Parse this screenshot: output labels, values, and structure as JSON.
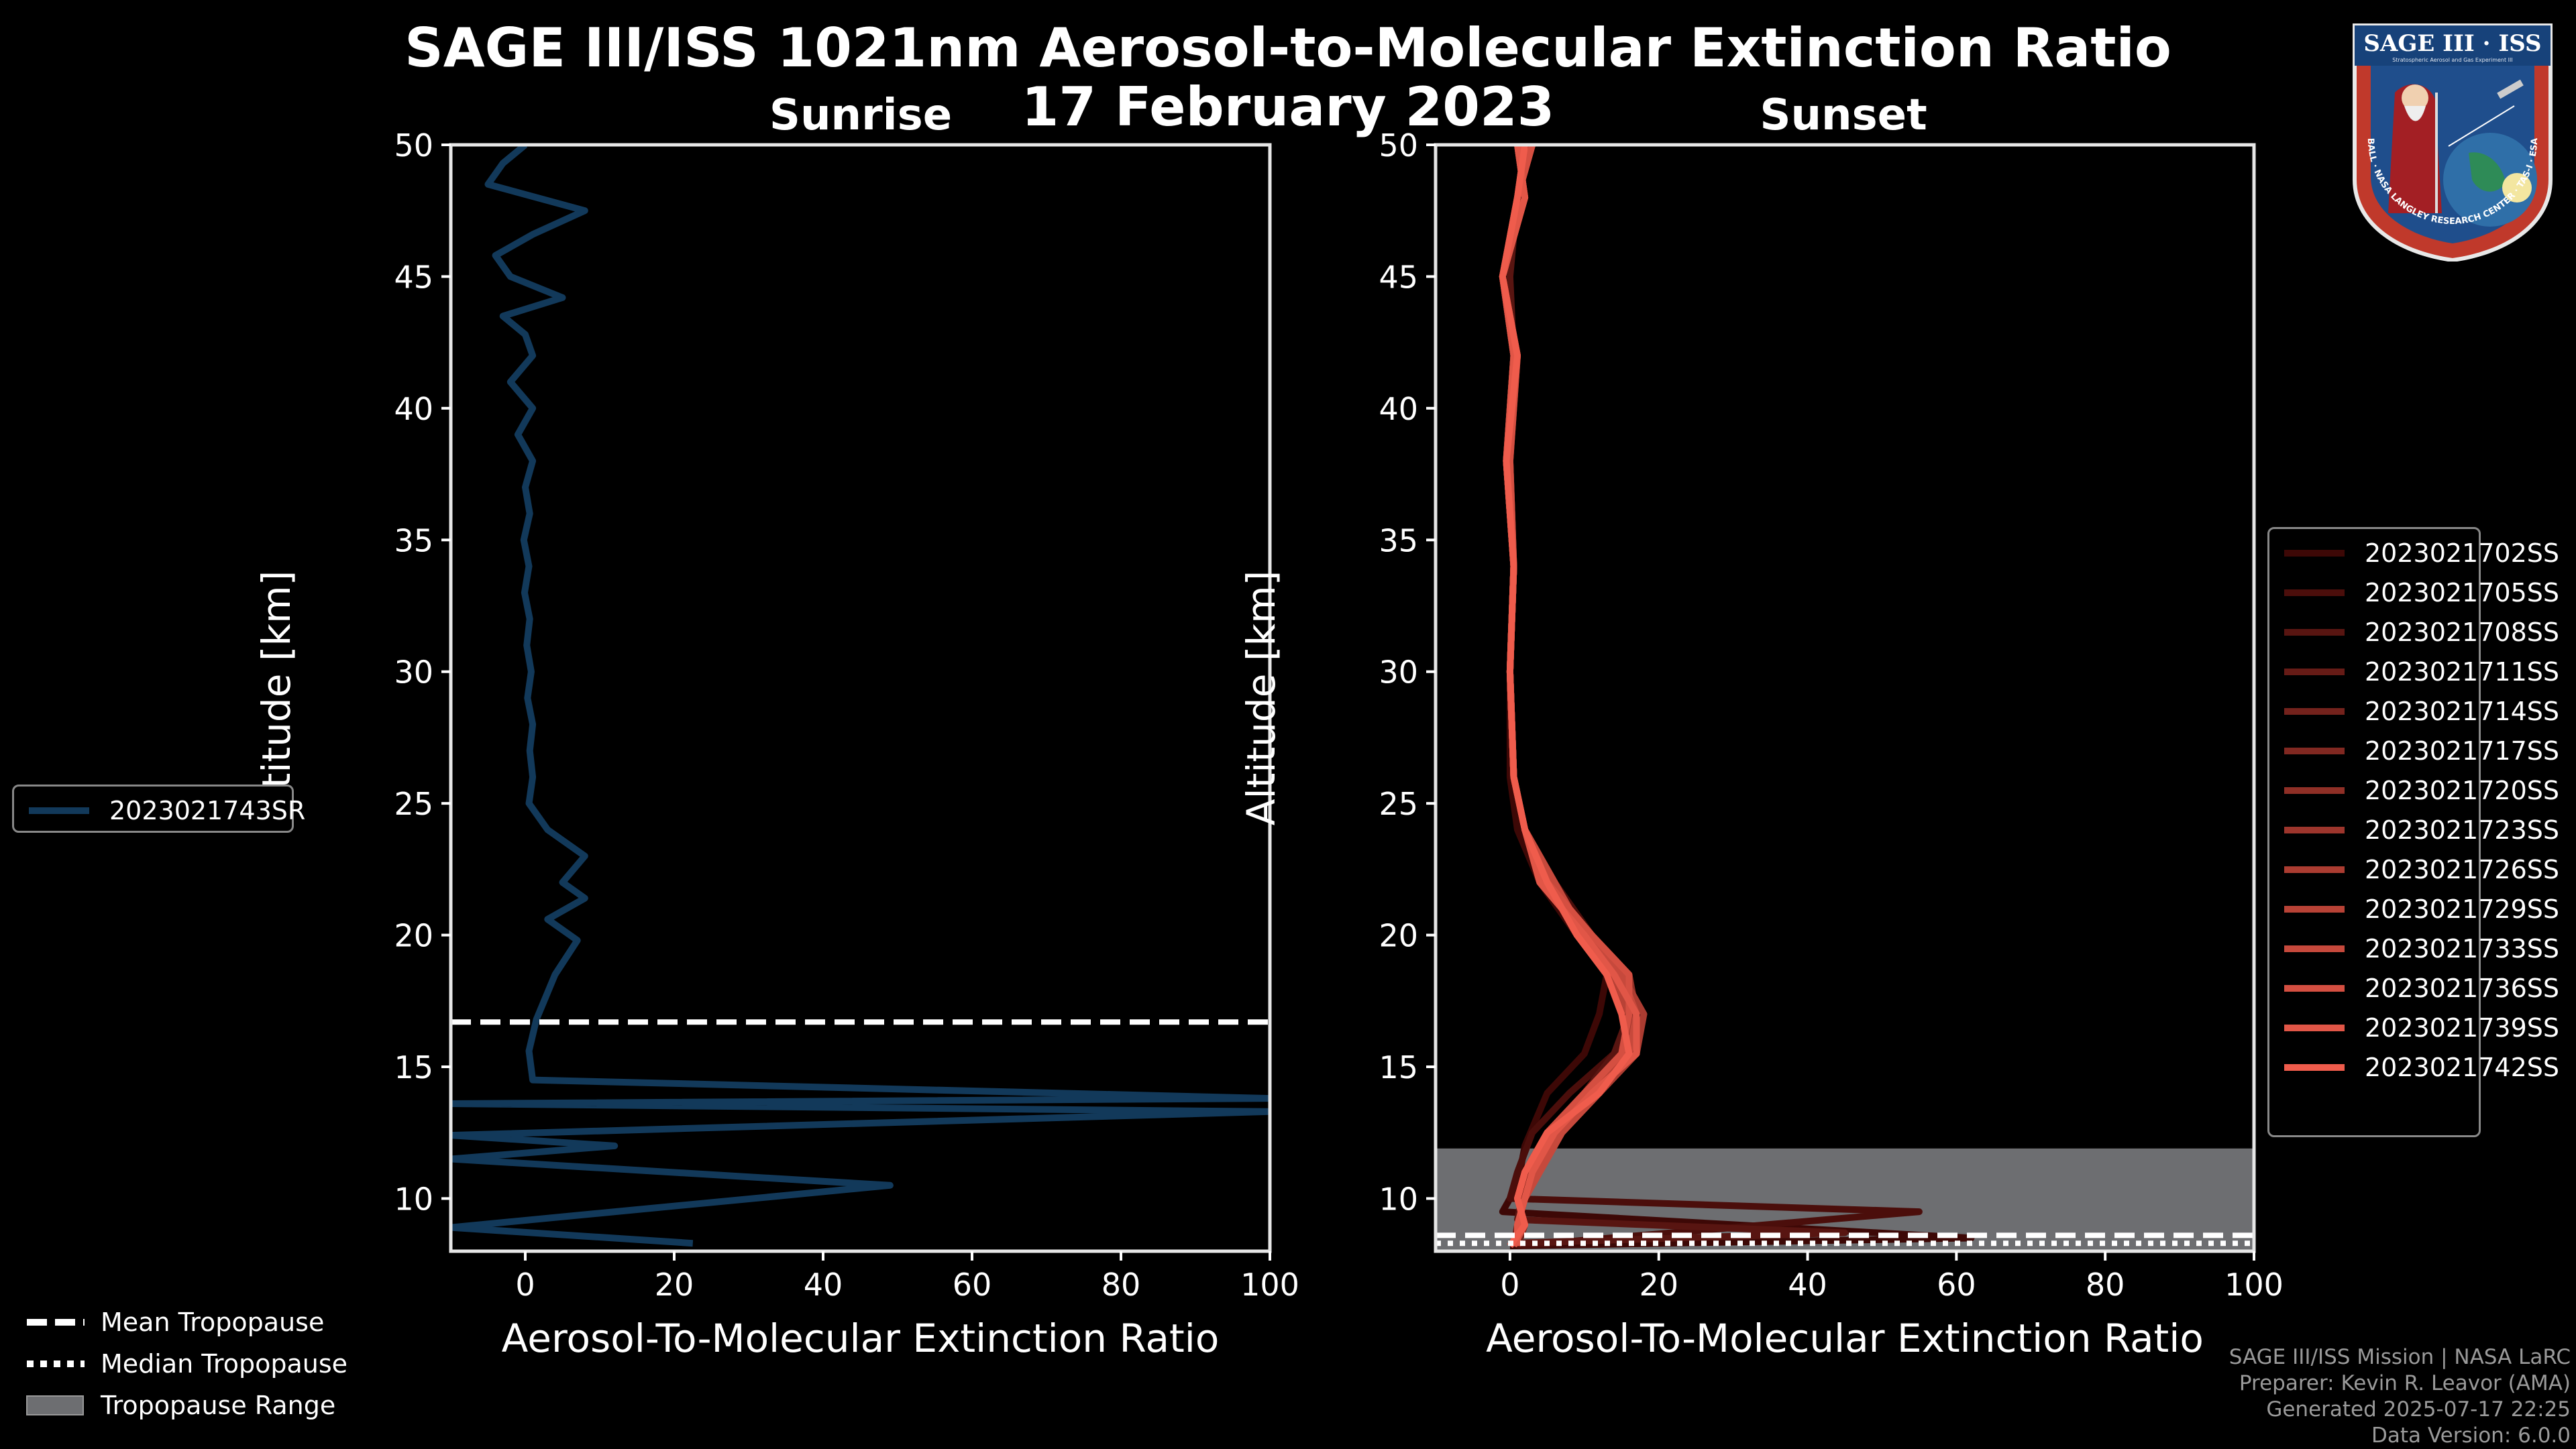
{
  "title": {
    "line1": "SAGE III/ISS 1021nm Aerosol-to-Molecular Extinction Ratio",
    "line2": "17 February 2023"
  },
  "panels": {
    "sunrise": {
      "title": "Sunrise"
    },
    "sunset": {
      "title": "Sunset"
    }
  },
  "legend_tropopause": {
    "mean": "Mean Tropopause",
    "median": "Median Tropopause",
    "range": "Tropopause Range"
  },
  "credits": {
    "line1": "SAGE III/ISS Mission | NASA LaRC",
    "line2": "Preparer: Kevin R. Leavor (AMA)",
    "line3": "Generated 2025-07-17 22:25",
    "line4": "Data Version: 6.0.0"
  },
  "logo": {
    "top_text": "SAGE III · ISS",
    "sub_text": "Stratospheric Aerosol and Gas Experiment III",
    "ring_text": "BALL · NASA LANGLEY RESEARCH CENTER · TAS-I · ESA"
  },
  "colors": {
    "sunrise_line": "#12395a",
    "sunset_dark": "#3d0806",
    "sunset_light": "#ef5c4c",
    "range_fill": "#6d6e71"
  },
  "chart_data": [
    {
      "type": "line",
      "panel": "sunrise",
      "title": "Sunrise",
      "xlabel": "Aerosol-To-Molecular Extinction Ratio",
      "ylabel": "Altitude [km]",
      "xlim": [
        -10,
        100
      ],
      "ylim": [
        8,
        50
      ],
      "xticks": [
        0,
        20,
        40,
        60,
        80,
        100
      ],
      "yticks": [
        10,
        15,
        20,
        25,
        30,
        35,
        40,
        45,
        50
      ],
      "mean_tropopause_km": 16.7,
      "series": [
        {
          "name": "2023021743SR",
          "x": [
            22.5,
            -10,
            49,
            -10,
            12,
            -10,
            100,
            -10,
            100,
            1,
            0.5,
            1.5,
            4,
            7,
            3,
            8,
            5,
            8,
            3,
            0.5,
            1,
            0.6,
            1,
            0.3,
            0.8,
            0.2,
            0.6,
            -0.1,
            0.5,
            -0.2,
            0.6,
            0,
            1,
            -1,
            1,
            -2,
            1,
            0,
            -3,
            5,
            -2,
            -4,
            1,
            8,
            -5,
            -3,
            0
          ],
          "y": [
            8.3,
            8.9,
            10.5,
            11.5,
            12.0,
            12.4,
            13.3,
            13.6,
            13.8,
            14.5,
            15.6,
            16.8,
            18.5,
            19.8,
            20.6,
            21.4,
            22.0,
            23.0,
            24.0,
            25.0,
            26.0,
            27.0,
            28.0,
            29.0,
            30.0,
            31.0,
            32.0,
            33.0,
            34.0,
            35.0,
            36.0,
            37.0,
            38.0,
            39.0,
            40.0,
            41.0,
            42.0,
            42.8,
            43.5,
            44.2,
            45.0,
            45.8,
            46.6,
            47.5,
            48.5,
            49.3,
            50.0
          ]
        }
      ]
    },
    {
      "type": "line",
      "panel": "sunset",
      "title": "Sunset",
      "xlabel": "Aerosol-To-Molecular Extinction Ratio",
      "ylabel": "Altitude [km]",
      "xlim": [
        -10,
        100
      ],
      "ylim": [
        8,
        50
      ],
      "xticks": [
        0,
        20,
        40,
        60,
        80,
        100
      ],
      "yticks": [
        10,
        15,
        20,
        25,
        30,
        35,
        40,
        45,
        50
      ],
      "mean_tropopause_km": 8.6,
      "median_tropopause_km": 8.3,
      "tropopause_range_km": [
        8,
        11.9
      ],
      "series": [
        {
          "name": "2023021702SS",
          "x": [
            0,
            62,
            -1,
            1,
            2,
            5,
            10,
            12,
            13,
            9,
            4,
            1,
            0,
            0,
            0.5,
            0,
            1,
            -1,
            1,
            2
          ],
          "y": [
            8.2,
            8.5,
            9.5,
            10.5,
            12,
            14,
            15.5,
            17,
            18.5,
            20,
            22,
            24,
            26,
            30,
            34,
            38,
            42,
            45,
            48,
            50
          ]
        },
        {
          "name": "2023021705SS",
          "x": [
            1,
            55,
            0,
            1,
            3,
            8,
            14,
            17,
            16,
            11,
            6,
            2,
            0.5,
            0,
            0.5,
            -0.5,
            0.5,
            -1,
            2,
            1
          ],
          "y": [
            8.2,
            9.5,
            10,
            11,
            12.5,
            14,
            15.5,
            17,
            18.5,
            20,
            22,
            24,
            26,
            30,
            34,
            38,
            42,
            45,
            48,
            50
          ]
        },
        {
          "name": "2023021708SS",
          "x": [
            0,
            45,
            1,
            2,
            4,
            10,
            14,
            16,
            15,
            10,
            5,
            2,
            0.5,
            0,
            0.5,
            -0.5,
            0.5,
            0,
            1,
            2
          ],
          "y": [
            8.3,
            8.7,
            9.2,
            10.5,
            12,
            14,
            15.5,
            17,
            18.5,
            20,
            22,
            24,
            26,
            30,
            34,
            38,
            42,
            45,
            48,
            50
          ]
        },
        {
          "name": "2023021711SS",
          "x": [
            0.5,
            1,
            2,
            3,
            5,
            10,
            15,
            16,
            14,
            10,
            5,
            2,
            0.5,
            0,
            0.5,
            -0.5,
            1,
            -1,
            1,
            3
          ],
          "y": [
            8.2,
            9,
            10,
            11,
            12.5,
            14,
            15.5,
            17,
            18.5,
            20,
            22,
            24,
            26,
            30,
            34,
            38,
            42,
            45,
            48,
            50
          ]
        },
        {
          "name": "2023021714SS",
          "x": [
            1,
            2,
            1,
            3,
            6,
            11,
            16,
            17,
            15,
            10,
            6,
            2,
            0.5,
            0,
            0.5,
            -0.5,
            0.5,
            -1,
            2,
            1
          ],
          "y": [
            8.2,
            9,
            10,
            11,
            12.5,
            14,
            15.5,
            17,
            18.5,
            20,
            22,
            24,
            26,
            30,
            34,
            38,
            42,
            45,
            48,
            50
          ]
        },
        {
          "name": "2023021717SS",
          "x": [
            0,
            2,
            1,
            2,
            5,
            12,
            17,
            16,
            14,
            11,
            5,
            2,
            0.5,
            0,
            0.5,
            0,
            1,
            -1,
            1,
            2
          ],
          "y": [
            8.2,
            9,
            10,
            11,
            12.5,
            14,
            15.5,
            17,
            18.5,
            20,
            22,
            24,
            26,
            30,
            34,
            38,
            42,
            45,
            48,
            50
          ]
        },
        {
          "name": "2023021720SS",
          "x": [
            1,
            1,
            2,
            3,
            6,
            11,
            15,
            17,
            16,
            9,
            6,
            2,
            0.5,
            0,
            0.5,
            -0.5,
            0.5,
            -1,
            2,
            1
          ],
          "y": [
            8.2,
            9,
            10,
            11,
            12.5,
            14,
            15.5,
            17,
            18.5,
            20,
            22,
            24,
            26,
            30,
            34,
            38,
            42,
            45,
            48,
            50
          ]
        },
        {
          "name": "2023021723SS",
          "x": [
            0.5,
            2,
            1,
            2,
            5,
            10,
            16,
            16,
            13,
            10,
            4,
            2,
            0.5,
            0,
            0.5,
            -0.5,
            1,
            -1,
            1,
            3
          ],
          "y": [
            8.2,
            9,
            10,
            11,
            12.5,
            14,
            15.5,
            17,
            18.5,
            20,
            22,
            24,
            26,
            30,
            34,
            38,
            42,
            45,
            48,
            50
          ]
        },
        {
          "name": "2023021726SS",
          "x": [
            1,
            1,
            2,
            3,
            6,
            12,
            17,
            18,
            15,
            11,
            5,
            2,
            0.5,
            0,
            0.5,
            0,
            0.5,
            -1,
            2,
            1
          ],
          "y": [
            8.2,
            9,
            10,
            11,
            12.5,
            14,
            15.5,
            17,
            18.5,
            20,
            22,
            24,
            26,
            30,
            34,
            38,
            42,
            45,
            48,
            50
          ]
        },
        {
          "name": "2023021729SS",
          "x": [
            0,
            2,
            1,
            2,
            5,
            11,
            15,
            16,
            14,
            9,
            5,
            2,
            0.5,
            0,
            0.5,
            -0.5,
            1,
            -1,
            1,
            2
          ],
          "y": [
            8.2,
            9,
            10,
            11,
            12.5,
            14,
            15.5,
            17,
            18.5,
            20,
            22,
            24,
            26,
            30,
            34,
            38,
            42,
            45,
            48,
            50
          ]
        },
        {
          "name": "2023021733SS",
          "x": [
            1,
            1,
            2,
            4,
            7,
            12,
            16,
            17,
            15,
            10,
            6,
            2,
            0.5,
            0,
            0.5,
            -0.5,
            0.5,
            -1,
            2,
            1
          ],
          "y": [
            8.2,
            9,
            10,
            11,
            12.5,
            14,
            15.5,
            17,
            18.5,
            20,
            22,
            24,
            26,
            30,
            34,
            38,
            42,
            45,
            48,
            50
          ]
        },
        {
          "name": "2023021736SS",
          "x": [
            0.5,
            2,
            1,
            2,
            5,
            10,
            15,
            16,
            16,
            11,
            5,
            2,
            0.5,
            0,
            0.5,
            0,
            1,
            -1,
            1,
            3
          ],
          "y": [
            8.2,
            9,
            10,
            11,
            12.5,
            14,
            15.5,
            17,
            18.5,
            20,
            22,
            24,
            26,
            30,
            34,
            38,
            42,
            45,
            48,
            50
          ]
        },
        {
          "name": "2023021739SS",
          "x": [
            1,
            1,
            2,
            3,
            6,
            11,
            17,
            17,
            14,
            10,
            4,
            2,
            0.5,
            0,
            0.5,
            -0.5,
            0.5,
            -1,
            2,
            1
          ],
          "y": [
            8.2,
            9,
            10,
            11,
            12.5,
            14,
            15.5,
            17,
            18.5,
            20,
            22,
            24,
            26,
            30,
            34,
            38,
            42,
            45,
            48,
            50
          ]
        },
        {
          "name": "2023021742SS",
          "x": [
            0,
            2,
            1,
            2,
            5,
            12,
            16,
            15,
            13,
            9,
            5,
            2,
            0.5,
            0,
            0.5,
            -0.5,
            1,
            -1,
            1,
            2
          ],
          "y": [
            8.2,
            9,
            10,
            11,
            12.5,
            14,
            15.5,
            17,
            18.5,
            20,
            22,
            24,
            26,
            30,
            34,
            38,
            42,
            45,
            48,
            50
          ]
        }
      ]
    }
  ]
}
